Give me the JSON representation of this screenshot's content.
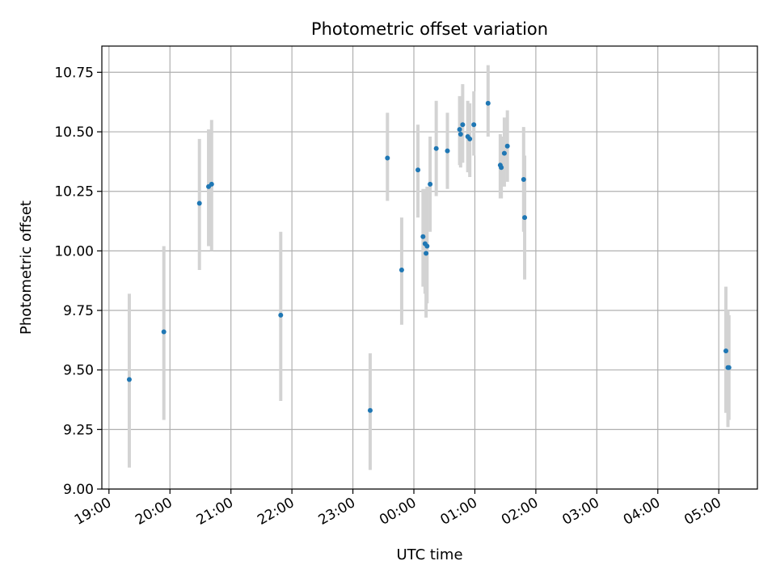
{
  "chart_data": {
    "type": "scatter",
    "title": "Photometric offset variation",
    "xlabel": "UTC time",
    "ylabel": "Photometric offset",
    "x_ticks": [
      "19:00",
      "20:00",
      "21:00",
      "22:00",
      "23:00",
      "00:00",
      "01:00",
      "02:00",
      "03:00",
      "04:00",
      "05:00"
    ],
    "y_ticks": [
      "9.00",
      "9.25",
      "9.50",
      "9.75",
      "10.00",
      "10.25",
      "10.50",
      "10.75"
    ],
    "y_tick_values": [
      9.0,
      9.25,
      9.5,
      9.75,
      10.0,
      10.25,
      10.5,
      10.75
    ],
    "xlim": [
      "18:53",
      "05:38"
    ],
    "ylim": [
      9.0,
      10.86
    ],
    "grid": true,
    "colors": {
      "point": "#1f77b4",
      "errorbar": "#d3d3d3",
      "grid": "#b0b0b0"
    },
    "points": [
      {
        "t": "19:20",
        "y": 9.46,
        "lo": 9.09,
        "hi": 9.82
      },
      {
        "t": "19:54",
        "y": 9.66,
        "lo": 9.29,
        "hi": 10.02
      },
      {
        "t": "20:29",
        "y": 10.2,
        "lo": 9.92,
        "hi": 10.47
      },
      {
        "t": "20:38",
        "y": 10.27,
        "lo": 10.02,
        "hi": 10.51
      },
      {
        "t": "20:41",
        "y": 10.28,
        "lo": 10.0,
        "hi": 10.55
      },
      {
        "t": "21:49",
        "y": 9.73,
        "lo": 9.37,
        "hi": 10.08
      },
      {
        "t": "23:17",
        "y": 9.33,
        "lo": 9.08,
        "hi": 9.57
      },
      {
        "t": "23:34",
        "y": 10.39,
        "lo": 10.21,
        "hi": 10.58
      },
      {
        "t": "23:48",
        "y": 9.92,
        "lo": 9.69,
        "hi": 10.14
      },
      {
        "t": "00:04",
        "y": 10.34,
        "lo": 10.14,
        "hi": 10.53
      },
      {
        "t": "00:09",
        "y": 10.06,
        "lo": 9.85,
        "hi": 10.26
      },
      {
        "t": "00:11",
        "y": 10.03,
        "lo": 9.82,
        "hi": 10.25
      },
      {
        "t": "00:12",
        "y": 9.99,
        "lo": 9.72,
        "hi": 10.26
      },
      {
        "t": "00:13",
        "y": 10.02,
        "lo": 9.78,
        "hi": 10.27
      },
      {
        "t": "00:16",
        "y": 10.28,
        "lo": 10.08,
        "hi": 10.48
      },
      {
        "t": "00:22",
        "y": 10.43,
        "lo": 10.23,
        "hi": 10.63
      },
      {
        "t": "00:33",
        "y": 10.42,
        "lo": 10.26,
        "hi": 10.58
      },
      {
        "t": "00:45",
        "y": 10.51,
        "lo": 10.36,
        "hi": 10.65
      },
      {
        "t": "00:46",
        "y": 10.49,
        "lo": 10.35,
        "hi": 10.62
      },
      {
        "t": "00:48",
        "y": 10.53,
        "lo": 10.37,
        "hi": 10.7
      },
      {
        "t": "00:53",
        "y": 10.48,
        "lo": 10.33,
        "hi": 10.63
      },
      {
        "t": "00:55",
        "y": 10.47,
        "lo": 10.31,
        "hi": 10.62
      },
      {
        "t": "00:59",
        "y": 10.53,
        "lo": 10.4,
        "hi": 10.67
      },
      {
        "t": "01:13",
        "y": 10.62,
        "lo": 10.48,
        "hi": 10.78
      },
      {
        "t": "01:25",
        "y": 10.36,
        "lo": 10.22,
        "hi": 10.49
      },
      {
        "t": "01:26",
        "y": 10.35,
        "lo": 10.22,
        "hi": 10.48
      },
      {
        "t": "01:29",
        "y": 10.41,
        "lo": 10.27,
        "hi": 10.56
      },
      {
        "t": "01:32",
        "y": 10.44,
        "lo": 10.29,
        "hi": 10.59
      },
      {
        "t": "01:48",
        "y": 10.3,
        "lo": 10.08,
        "hi": 10.52
      },
      {
        "t": "01:49",
        "y": 10.14,
        "lo": 9.88,
        "hi": 10.4
      },
      {
        "t": "05:07",
        "y": 9.58,
        "lo": 9.32,
        "hi": 9.85
      },
      {
        "t": "05:09",
        "y": 9.51,
        "lo": 9.26,
        "hi": 9.75
      },
      {
        "t": "05:10",
        "y": 9.51,
        "lo": 9.29,
        "hi": 9.73
      }
    ]
  }
}
